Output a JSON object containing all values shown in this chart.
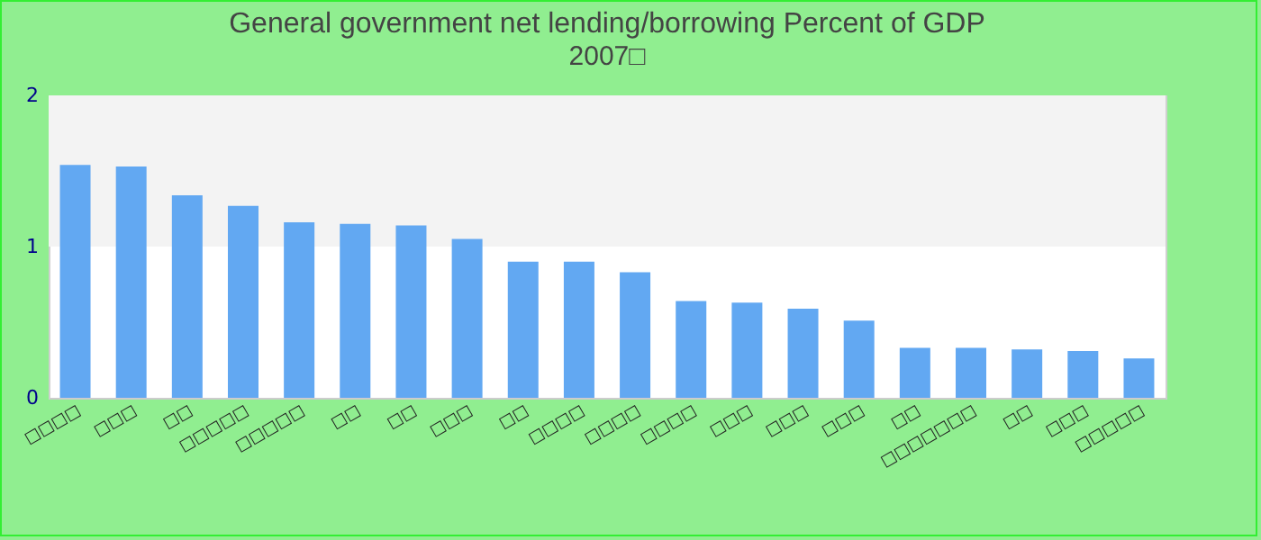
{
  "chart_data": {
    "type": "bar",
    "title": "General government net lending/borrowing  Percent of GDP",
    "subtitle": "2007□",
    "categories": [
      "□□□□",
      "□□□",
      "□□",
      "□□□□□",
      "□□□□□",
      "□□",
      "□□",
      "□□□",
      "□□",
      "□□□□",
      "□□□□",
      "□□□□",
      "□□□",
      "□□□",
      "□□□",
      "□□",
      "□□□□□□□",
      "□□",
      "□□□",
      "□□□□□"
    ],
    "values": [
      1.54,
      1.53,
      1.34,
      1.27,
      1.16,
      1.15,
      1.14,
      1.05,
      0.9,
      0.9,
      0.83,
      0.64,
      0.63,
      0.59,
      0.51,
      0.33,
      0.33,
      0.32,
      0.31,
      0.26
    ],
    "color": "#62a8f2",
    "ylim": [
      0,
      2
    ],
    "yticks": [
      0,
      1,
      2
    ],
    "bands": [
      {
        "axis": "y",
        "from": 1,
        "to": 2,
        "color": "#f3f3f3"
      }
    ]
  }
}
